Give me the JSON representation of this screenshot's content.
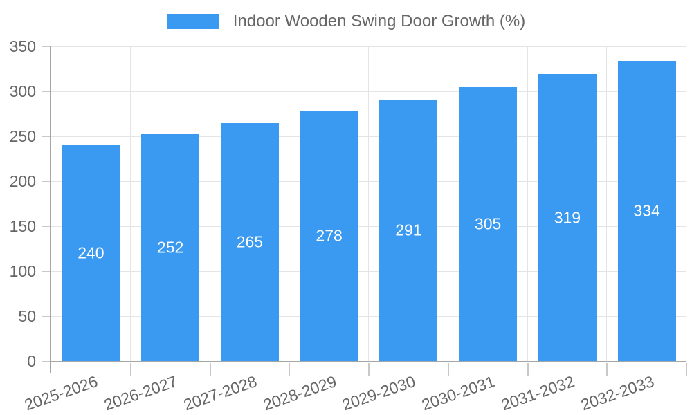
{
  "chart_data": {
    "type": "bar",
    "title": "Indoor Wooden Swing Door Growth (%)",
    "categories": [
      "2025-2026",
      "2026-2027",
      "2027-2028",
      "2028-2029",
      "2029-2030",
      "2030-2031",
      "2031-2032",
      "2032-2033"
    ],
    "values": [
      240,
      252,
      265,
      278,
      291,
      305,
      319,
      334
    ],
    "xlabel": "",
    "ylabel": "",
    "ylim": [
      0,
      350
    ],
    "ytick_step": 50,
    "grid": true,
    "legend_position": "top",
    "value_labels_inside_bars": true,
    "bar_color": "#3A99F0",
    "colors": {
      "grid": "#E4E4E4",
      "tick": "#C8C8C8",
      "axis": "#A6A6A6",
      "text": "#666666",
      "value_label": "#FFFFFF",
      "background": "#FFFFFF"
    }
  }
}
